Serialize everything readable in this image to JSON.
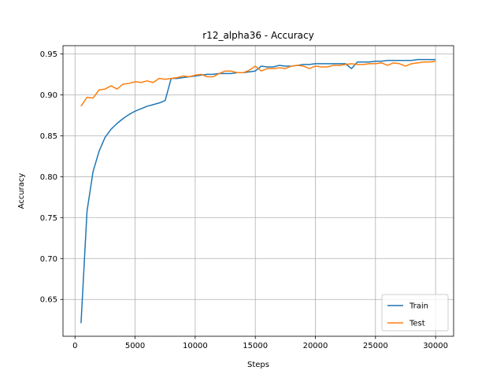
{
  "chart_data": {
    "type": "line",
    "title": "r12_alpha36 - Accuracy",
    "xlabel": "Steps",
    "ylabel": "Accuracy",
    "xlim": [
      -1000,
      31500
    ],
    "ylim": [
      0.605,
      0.96
    ],
    "xticks": [
      0,
      5000,
      10000,
      15000,
      20000,
      25000,
      30000
    ],
    "xtick_labels": [
      "0",
      "5000",
      "10000",
      "15000",
      "20000",
      "25000",
      "30000"
    ],
    "yticks": [
      0.65,
      0.7,
      0.75,
      0.8,
      0.85,
      0.9,
      0.95
    ],
    "ytick_labels": [
      "0.65",
      "0.70",
      "0.75",
      "0.80",
      "0.85",
      "0.90",
      "0.95"
    ],
    "grid": true,
    "legend_position": "bottom-right",
    "series": [
      {
        "name": "Train",
        "color": "#1f77b4",
        "x": [
          500,
          1000,
          1500,
          2000,
          2500,
          3000,
          3500,
          4000,
          4500,
          5000,
          5500,
          6000,
          6500,
          7000,
          7500,
          8000,
          8500,
          9000,
          9500,
          10000,
          10500,
          11000,
          11500,
          12000,
          12500,
          13000,
          13500,
          14000,
          14500,
          15000,
          15500,
          16000,
          16500,
          17000,
          17500,
          18000,
          18500,
          19000,
          19500,
          20000,
          20500,
          21000,
          21500,
          22000,
          22500,
          23000,
          23500,
          24000,
          24500,
          25000,
          25500,
          26000,
          26500,
          27000,
          27500,
          28000,
          28500,
          29000,
          29500,
          30000
        ],
        "values": [
          0.621,
          0.758,
          0.806,
          0.831,
          0.848,
          0.858,
          0.865,
          0.871,
          0.876,
          0.88,
          0.883,
          0.886,
          0.888,
          0.89,
          0.893,
          0.92,
          0.92,
          0.921,
          0.922,
          0.923,
          0.924,
          0.925,
          0.925,
          0.926,
          0.926,
          0.926,
          0.927,
          0.927,
          0.928,
          0.929,
          0.935,
          0.934,
          0.934,
          0.936,
          0.935,
          0.935,
          0.936,
          0.937,
          0.937,
          0.938,
          0.938,
          0.938,
          0.938,
          0.938,
          0.938,
          0.932,
          0.94,
          0.94,
          0.94,
          0.941,
          0.941,
          0.942,
          0.942,
          0.942,
          0.942,
          0.942,
          0.943,
          0.943,
          0.943,
          0.943
        ]
      },
      {
        "name": "Test",
        "color": "#ff7f0e",
        "x": [
          500,
          1000,
          1500,
          2000,
          2500,
          3000,
          3500,
          4000,
          4500,
          5000,
          5500,
          6000,
          6500,
          7000,
          7500,
          8000,
          8500,
          9000,
          9500,
          10000,
          10500,
          11000,
          11500,
          12000,
          12500,
          13000,
          13500,
          14000,
          14500,
          15000,
          15500,
          16000,
          16500,
          17000,
          17500,
          18000,
          18500,
          19000,
          19500,
          20000,
          20500,
          21000,
          21500,
          22000,
          22500,
          23000,
          23500,
          24000,
          24500,
          25000,
          25500,
          26000,
          26500,
          27000,
          27500,
          28000,
          28500,
          29000,
          29500,
          30000
        ],
        "values": [
          0.886,
          0.897,
          0.896,
          0.906,
          0.907,
          0.911,
          0.907,
          0.913,
          0.914,
          0.916,
          0.915,
          0.917,
          0.915,
          0.92,
          0.919,
          0.92,
          0.921,
          0.923,
          0.922,
          0.924,
          0.925,
          0.922,
          0.922,
          0.926,
          0.929,
          0.929,
          0.927,
          0.927,
          0.93,
          0.935,
          0.929,
          0.932,
          0.932,
          0.933,
          0.932,
          0.935,
          0.936,
          0.935,
          0.932,
          0.935,
          0.934,
          0.934,
          0.936,
          0.936,
          0.937,
          0.938,
          0.937,
          0.937,
          0.938,
          0.938,
          0.939,
          0.936,
          0.939,
          0.938,
          0.935,
          0.938,
          0.939,
          0.94,
          0.94,
          0.941
        ]
      }
    ]
  }
}
